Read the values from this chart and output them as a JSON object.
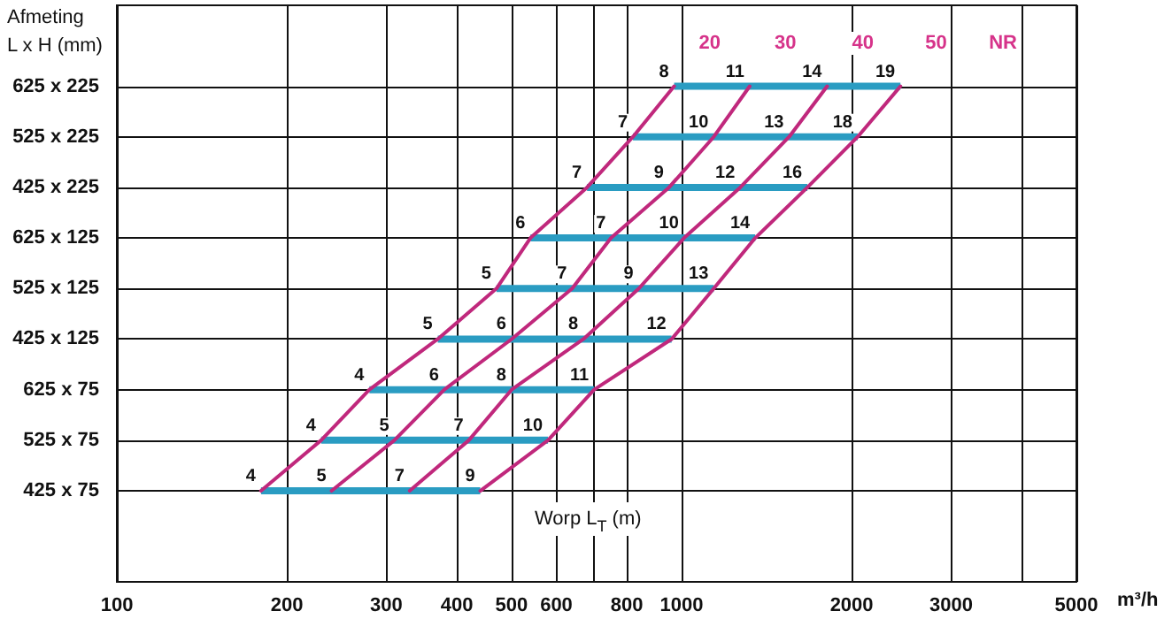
{
  "chart_data": {
    "type": "line",
    "orientation": "horizontal",
    "ylabel": "Afmeting\nL x H (mm)",
    "xlabel": "m³/h",
    "legend_title": "NR",
    "categories": [
      "625 x 225",
      "525 x 225",
      "425 x 225",
      "625 x 125",
      "525 x 125",
      "425 x 125",
      "625 x 75",
      "525 x 75",
      "425 x 75"
    ],
    "series": [
      {
        "type": "bar",
        "color": "#2a9cc2",
        "base": [
          970,
          820,
          680,
          540,
          470,
          370,
          280,
          230,
          180
        ],
        "values": [
          1470,
          1230,
          990,
          810,
          670,
          590,
          420,
          350,
          260
        ]
      },
      {
        "name": "20",
        "color": "#c0287c",
        "values": [
          970,
          820,
          680,
          540,
          470,
          370,
          280,
          230,
          180
        ]
      },
      {
        "name": "30",
        "color": "#c0287c",
        "values": [
          1320,
          1140,
          950,
          750,
          640,
          500,
          380,
          310,
          240
        ]
      },
      {
        "name": "40",
        "color": "#c0287c",
        "values": [
          1810,
          1550,
          1270,
          1010,
          840,
          670,
          500,
          420,
          330
        ]
      },
      {
        "name": "50",
        "color": "#c0287c",
        "values": [
          2440,
          2050,
          1670,
          1350,
          1140,
          960,
          700,
          580,
          440
        ]
      }
    ],
    "log": "x",
    "xlim": [
      100,
      5000
    ],
    "xticks": [
      100,
      200,
      300,
      400,
      500,
      600,
      {
        "value": 700,
        "label": null
      },
      800,
      1000,
      2000,
      3000,
      {
        "value": 4000,
        "label": null
      },
      5000
    ],
    "grid": true,
    "marker": "none",
    "annotations": [
      "Worp L$_{T}$ (m)",
      {
        "text": "8",
        "x": 970,
        "y": "625 x 225"
      },
      {
        "text": "11",
        "x": 1320,
        "y": "625 x 225"
      },
      {
        "text": "14",
        "x": 1810,
        "y": "625 x 225"
      },
      {
        "text": "19",
        "x": 2440,
        "y": "625 x 225"
      },
      {
        "text": "7",
        "x": 820,
        "y": "525 x 225"
      },
      {
        "text": "10",
        "x": 1140,
        "y": "525 x 225"
      },
      {
        "text": "13",
        "x": 1550,
        "y": "525 x 225"
      },
      {
        "text": "18",
        "x": 2050,
        "y": "525 x 225"
      },
      {
        "text": "7",
        "x": 680,
        "y": "425 x 225"
      },
      {
        "text": "9",
        "x": 950,
        "y": "425 x 225"
      },
      {
        "text": "12",
        "x": 1270,
        "y": "425 x 225"
      },
      {
        "text": "16",
        "x": 1670,
        "y": "425 x 225"
      },
      {
        "text": "6",
        "x": 540,
        "y": "625 x 125"
      },
      {
        "text": "7",
        "x": 750,
        "y": "625 x 125"
      },
      {
        "text": "10",
        "x": 1010,
        "y": "625 x 125"
      },
      {
        "text": "14",
        "x": 1350,
        "y": "625 x 125"
      },
      {
        "text": "5",
        "x": 470,
        "y": "525 x 125"
      },
      {
        "text": "7",
        "x": 640,
        "y": "525 x 125"
      },
      {
        "text": "9",
        "x": 840,
        "y": "525 x 125"
      },
      {
        "text": "13",
        "x": 1140,
        "y": "525 x 125"
      },
      {
        "text": "5",
        "x": 370,
        "y": "425 x 125"
      },
      {
        "text": "6",
        "x": 500,
        "y": "425 x 125"
      },
      {
        "text": "8",
        "x": 670,
        "y": "425 x 125"
      },
      {
        "text": "12",
        "x": 960,
        "y": "425 x 125"
      },
      {
        "text": "4",
        "x": 280,
        "y": "625 x 75"
      },
      {
        "text": "6",
        "x": 380,
        "y": "625 x 75"
      },
      {
        "text": "8",
        "x": 500,
        "y": "625 x 75"
      },
      {
        "text": "11",
        "x": 700,
        "y": "625 x 75"
      },
      {
        "text": "4",
        "x": 230,
        "y": "525 x 75"
      },
      {
        "text": "5",
        "x": 310,
        "y": "525 x 75"
      },
      {
        "text": "7",
        "x": 420,
        "y": "525 x 75"
      },
      {
        "text": "10",
        "x": 580,
        "y": "525 x 75"
      },
      {
        "text": "4",
        "x": 180,
        "y": "425 x 75"
      },
      {
        "text": "5",
        "x": 240,
        "y": "425 x 75"
      },
      {
        "text": "7",
        "x": 330,
        "y": "425 x 75"
      },
      {
        "text": "9",
        "x": 440,
        "y": "425 x 75"
      }
    ]
  }
}
